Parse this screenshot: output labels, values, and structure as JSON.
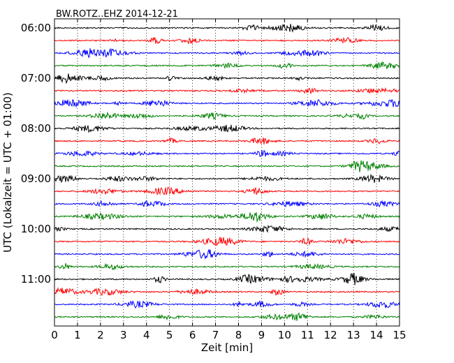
{
  "chart_data": {
    "type": "line",
    "title": "BW.ROTZ..EHZ 2014-12-21",
    "xlabel": "Zeit  [min]",
    "ylabel": "UTC (Lokalzeit = UTC + 01:00)",
    "xlim": [
      0,
      15
    ],
    "x_ticks": [
      "0",
      "1",
      "2",
      "3",
      "4",
      "5",
      "6",
      "7",
      "8",
      "9",
      "10",
      "11",
      "12",
      "13",
      "14",
      "15"
    ],
    "y_tick_labels": [
      "06:00",
      "07:00",
      "08:00",
      "09:00",
      "10:00",
      "11:00"
    ],
    "y_tick_rows": [
      0,
      4,
      8,
      12,
      16,
      20
    ],
    "row_minutes": 15,
    "grid": "vertical dotted at each minute",
    "colors": [
      "#000000",
      "#ff0000",
      "#0000ff",
      "#008000"
    ],
    "series": [
      {
        "start": "06:00",
        "color_index": 0
      },
      {
        "start": "06:15",
        "color_index": 1
      },
      {
        "start": "06:30",
        "color_index": 2
      },
      {
        "start": "06:45",
        "color_index": 3
      },
      {
        "start": "07:00",
        "color_index": 0
      },
      {
        "start": "07:15",
        "color_index": 1
      },
      {
        "start": "07:30",
        "color_index": 2
      },
      {
        "start": "07:45",
        "color_index": 3
      },
      {
        "start": "08:00",
        "color_index": 0
      },
      {
        "start": "08:15",
        "color_index": 1
      },
      {
        "start": "08:30",
        "color_index": 2
      },
      {
        "start": "08:45",
        "color_index": 3
      },
      {
        "start": "09:00",
        "color_index": 0
      },
      {
        "start": "09:15",
        "color_index": 1
      },
      {
        "start": "09:30",
        "color_index": 2
      },
      {
        "start": "09:45",
        "color_index": 3
      },
      {
        "start": "10:00",
        "color_index": 0
      },
      {
        "start": "10:15",
        "color_index": 1
      },
      {
        "start": "10:30",
        "color_index": 2
      },
      {
        "start": "10:45",
        "color_index": 3
      },
      {
        "start": "11:00",
        "color_index": 0
      },
      {
        "start": "11:15",
        "color_index": 1
      },
      {
        "start": "11:30",
        "color_index": 2
      },
      {
        "start": "11:45",
        "color_index": 3
      }
    ]
  }
}
